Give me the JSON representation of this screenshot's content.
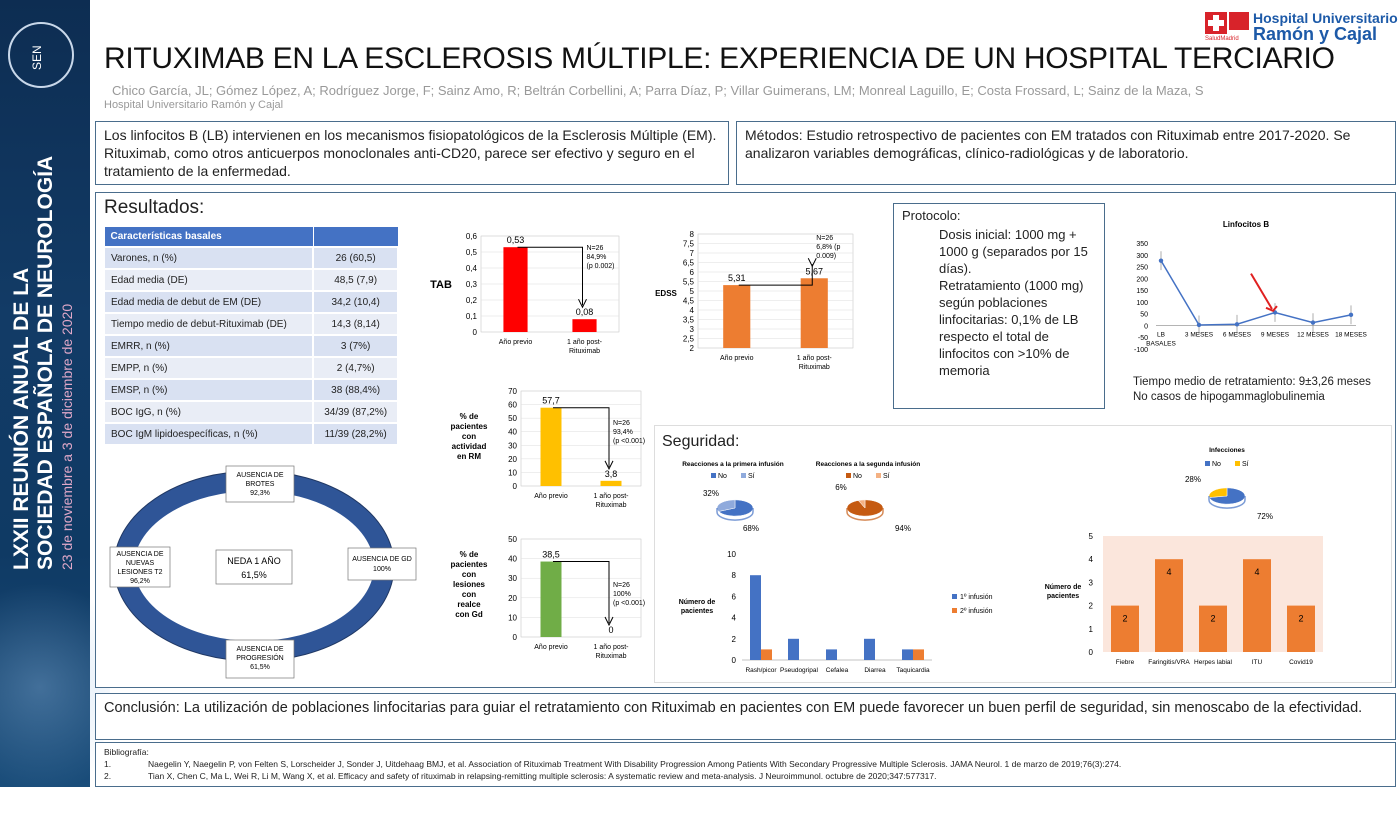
{
  "sidebar": {
    "logo": "SEN",
    "vertical_line1": "LXXII REUNIÓN ANUAL DE LA",
    "vertical_line2": "SOCIEDAD ESPAÑOLA DE NEUROLOGÍA",
    "vertical_dates": "23 de noviembre a 3 de diciembre de 2020"
  },
  "hospital_logo": {
    "line1": "Hospital Universitario",
    "line2": "Ramón y Cajal",
    "small": "SaludMadrid"
  },
  "title": "RITUXIMAB EN LA ESCLEROSIS MÚLTIPLE: EXPERIENCIA DE UN HOSPITAL TERCIARIO",
  "authors": "Chico García, JL; Gómez López, A; Rodríguez Jorge, F; Sainz Amo, R; Beltrán Corbellini, A; Parra Díaz, P; Villar Guimerans, LM; Monreal Laguillo, E; Costa Frossard, L; Sainz de la Maza, S",
  "affiliation": "Hospital Universitario Ramón y Cajal",
  "intro": "Los linfocitos B (LB) intervienen en los mecanismos fisiopatológicos de la Esclerosis Múltiple (EM). Rituximab, como otros anticuerpos monoclonales anti-CD20, parece ser efectivo y seguro en el tratamiento de la enfermedad.",
  "methods": "Métodos: Estudio retrospectivo de pacientes con EM tratados con Rituximab entre 2017-2020. Se analizaron variables demográficas, clínico-radiológicas y de laboratorio.",
  "results_title": "Resultados:",
  "basal_table": {
    "header": "Características basales",
    "rows": [
      [
        "Varones, n (%)",
        "26 (60,5)"
      ],
      [
        "Edad media (DE)",
        "48,5 (7,9)"
      ],
      [
        "Edad media de debut de EM (DE)",
        "34,2 (10,4)"
      ],
      [
        "Tiempo medio de debut-Rituximab (DE)",
        "14,3 (8,14)"
      ],
      [
        "EMRR, n (%)",
        "3 (7%)"
      ],
      [
        "EMPP, n (%)",
        "2 (4,7%)"
      ],
      [
        "EMSP, n (%)",
        "38 (88,4%)"
      ],
      [
        "BOC IgG, n (%)",
        "34/39 (87,2%)"
      ],
      [
        "BOC IgM lipidoespecíficas, n (%)",
        "11/39 (28,2%)"
      ]
    ]
  },
  "neda": {
    "center1": "NEDA 1 AÑO",
    "center2": "61,5%",
    "top": [
      "AUSENCIA DE",
      "BROTES",
      "92,3%"
    ],
    "right": [
      "AUSENCIA DE GD",
      "100%"
    ],
    "bottom": [
      "AUSENCIA DE",
      "PROGRESIÓN",
      "61,5%"
    ],
    "left": [
      "AUSENCIA DE",
      "NUEVAS",
      "LESIONES T2",
      "96,2%"
    ]
  },
  "protocol": {
    "title": "Protocolo:",
    "p1": "Dosis inicial: 1000 mg + 1000 g (separados por 15 días).",
    "p2": "Retratamiento (1000 mg) según poblaciones linfocitarias: 0,1% de LB respecto el total de linfocitos con >10% de memoria"
  },
  "retreatment": {
    "l1": "Tiempo medio de retratamiento: 9±3,26 meses",
    "l2": "No casos de hipogammaglobulinemia"
  },
  "seguridad_title": "Seguridad:",
  "conclusion": "Conclusión: La utilización de poblaciones linfocitarias para guiar el retratamiento con Rituximab en pacientes con EM puede favorecer un buen perfil de seguridad, sin menoscabo de la efectividad.",
  "biblio": {
    "title": "Bibliografía:",
    "refs": [
      [
        "1.",
        "Naegelin Y, Naegelin P, von Felten S, Lorscheider J, Sonder J, Uitdehaag BMJ, et al. Association of Rituximab Treatment With Disability Progression Among Patients With Secondary Progressive Multiple Sclerosis. JAMA Neurol. 1 de marzo de 2019;76(3):274."
      ],
      [
        "2.",
        "Tian X, Chen C, Ma L, Wei R, Li M, Wang X, et al. Efficacy and safety of rituximab in relapsing-remitting multiple sclerosis: A systematic review and meta-analysis. J Neuroimmunol. octubre de 2020;347:577317."
      ]
    ]
  },
  "chart_data": [
    {
      "id": "tab",
      "type": "bar",
      "ylabel": "TAB",
      "categories": [
        "Año previo",
        "1 año post-Rituximab"
      ],
      "values": [
        0.53,
        0.08
      ],
      "labels": [
        "0,53",
        "0,08"
      ],
      "ylim": [
        0,
        0.6
      ],
      "yticks": [
        "0",
        "0,1",
        "0,2",
        "0,3",
        "0,4",
        "0,5",
        "0,6"
      ],
      "color": "#ff0000",
      "annotation": [
        "N=26",
        "84,9%",
        "(p 0.002)"
      ]
    },
    {
      "id": "edss",
      "type": "bar",
      "ylabel": "EDSS",
      "categories": [
        "Año previo",
        "1 año post-Rituximab"
      ],
      "values": [
        5.31,
        5.67
      ],
      "labels": [
        "5,31",
        "5,67"
      ],
      "ylim": [
        2,
        8
      ],
      "yticks": [
        "2",
        "2,5",
        "3",
        "3,5",
        "4",
        "4,5",
        "5",
        "5,5",
        "6",
        "6,5",
        "7",
        "7,5",
        "8"
      ],
      "color": "#ed7d31",
      "annotation": [
        "N=26",
        "6,8% (p",
        "0.009)"
      ]
    },
    {
      "id": "rm",
      "type": "bar",
      "ylabel": "% de pacientes con actividad en RM",
      "categories": [
        "Año previo",
        "1 año post-Rituximab"
      ],
      "values": [
        57.7,
        3.8
      ],
      "labels": [
        "57,7",
        "3,8"
      ],
      "ylim": [
        0,
        70
      ],
      "yticks": [
        "0",
        "10",
        "20",
        "30",
        "40",
        "50",
        "60",
        "70"
      ],
      "color": "#ffc000",
      "annotation": [
        "N=26",
        "93,4%",
        "(p <0.001)"
      ]
    },
    {
      "id": "gd",
      "type": "bar",
      "ylabel": "% de pacientes con lesiones con realce con Gd",
      "categories": [
        "Año previo",
        "1 año post-Rituximab"
      ],
      "values": [
        38.5,
        0
      ],
      "labels": [
        "38,5",
        "0"
      ],
      "ylim": [
        0,
        50
      ],
      "yticks": [
        "0",
        "10",
        "20",
        "30",
        "40",
        "50"
      ],
      "color": "#70ad47",
      "annotation": [
        "N=26",
        "100%",
        "(p <0.001)"
      ]
    },
    {
      "id": "linfocitos",
      "type": "line",
      "title": "Linfocitos B",
      "categories": [
        "LB BASALES",
        "3 MESES",
        "6 MESES",
        "9 MESES",
        "12 MESES",
        "18 MESES"
      ],
      "values": [
        275,
        2,
        5,
        55,
        12,
        45
      ],
      "ylim": [
        -100,
        350
      ],
      "yticks": [
        "-100",
        "-50",
        "0",
        "50",
        "100",
        "150",
        "200",
        "250",
        "300",
        "350"
      ]
    },
    {
      "id": "pie1",
      "type": "pie",
      "title": "Reacciones a la primera infusión",
      "legend": [
        "No",
        "Sí"
      ],
      "values": [
        68,
        32
      ],
      "labels": [
        "68%",
        "32%"
      ],
      "colors": [
        "#4472c4",
        "#8faadc"
      ]
    },
    {
      "id": "pie2",
      "type": "pie",
      "title": "Reacciones a la segunda infusión",
      "legend": [
        "No",
        "Sí"
      ],
      "values": [
        94,
        6
      ],
      "labels": [
        "94%",
        "6%"
      ],
      "colors": [
        "#c55a11",
        "#f4b183"
      ]
    },
    {
      "id": "pie3",
      "type": "pie",
      "title": "Infecciones",
      "legend": [
        "No",
        "Sí"
      ],
      "values": [
        72,
        28
      ],
      "labels": [
        "72%",
        "28%"
      ],
      "colors": [
        "#4472c4",
        "#ffc000"
      ]
    },
    {
      "id": "reacciones",
      "type": "bar",
      "ylabel": "Número de pacientes",
      "categories": [
        "Rash/picor",
        "Pseudogripal",
        "Cefalea",
        "Diarrea",
        "Taquicardia"
      ],
      "series": [
        {
          "name": "1º infusión",
          "values": [
            8,
            2,
            1,
            2,
            1
          ],
          "color": "#4472c4"
        },
        {
          "name": "2º infusión",
          "values": [
            1,
            0,
            0,
            0,
            1
          ],
          "color": "#ed7d31"
        }
      ],
      "ylim": [
        0,
        10
      ],
      "yticks": [
        "0",
        "2",
        "4",
        "6",
        "8",
        "10"
      ]
    },
    {
      "id": "infecciones_bar",
      "type": "bar",
      "ylabel": "Número de pacientes",
      "categories": [
        "Fiebre",
        "Faringitis/VRA",
        "Herpes labial",
        "ITU",
        "Covid19"
      ],
      "values": [
        2,
        4,
        2,
        4,
        2
      ],
      "labels": [
        "2",
        "4",
        "2",
        "4",
        "2"
      ],
      "ylim": [
        0,
        5
      ],
      "yticks": [
        "0",
        "1",
        "2",
        "3",
        "4",
        "5"
      ],
      "color": "#ed7d31"
    }
  ]
}
